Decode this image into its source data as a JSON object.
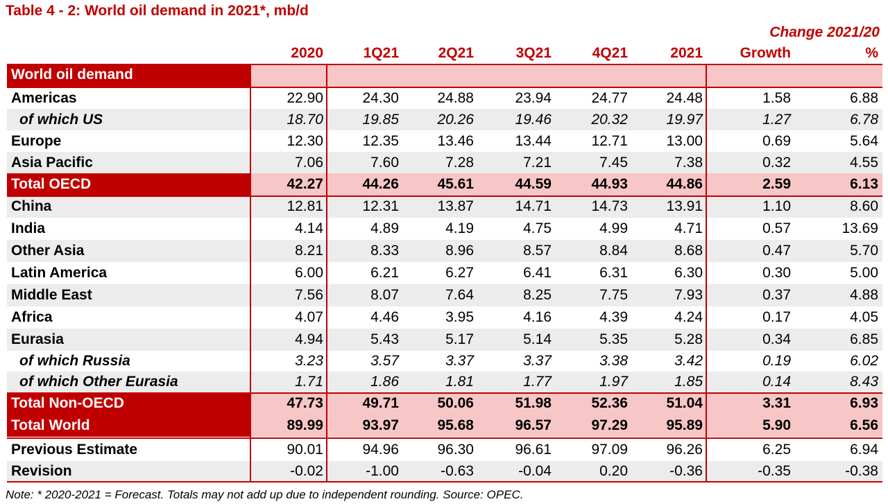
{
  "title": "Table 4 - 2: World oil demand in 2021*, mb/d",
  "change_header": "Change 2021/20",
  "columns": [
    "2020",
    "1Q21",
    "2Q21",
    "3Q21",
    "4Q21",
    "2021",
    "Growth",
    "%"
  ],
  "section_label": "World oil demand",
  "rows": [
    {
      "label": "Americas",
      "values": [
        "22.90",
        "24.30",
        "24.88",
        "23.94",
        "24.77",
        "24.48",
        "1.58",
        "6.88"
      ]
    },
    {
      "label": "of which US",
      "values": [
        "18.70",
        "19.85",
        "20.26",
        "19.46",
        "20.32",
        "19.97",
        "1.27",
        "6.78"
      ]
    },
    {
      "label": "Europe",
      "values": [
        "12.30",
        "12.35",
        "13.46",
        "13.44",
        "12.71",
        "13.00",
        "0.69",
        "5.64"
      ]
    },
    {
      "label": "Asia Pacific",
      "values": [
        "7.06",
        "7.60",
        "7.28",
        "7.21",
        "7.45",
        "7.38",
        "0.32",
        "4.55"
      ]
    },
    {
      "label": "Total OECD",
      "values": [
        "42.27",
        "44.26",
        "45.61",
        "44.59",
        "44.93",
        "44.86",
        "2.59",
        "6.13"
      ]
    },
    {
      "label": "China",
      "values": [
        "12.81",
        "12.31",
        "13.87",
        "14.71",
        "14.73",
        "13.91",
        "1.10",
        "8.60"
      ]
    },
    {
      "label": "India",
      "values": [
        "4.14",
        "4.89",
        "4.19",
        "4.75",
        "4.99",
        "4.71",
        "0.57",
        "13.69"
      ]
    },
    {
      "label": "Other Asia",
      "values": [
        "8.21",
        "8.33",
        "8.96",
        "8.57",
        "8.84",
        "8.68",
        "0.47",
        "5.70"
      ]
    },
    {
      "label": "Latin America",
      "values": [
        "6.00",
        "6.21",
        "6.27",
        "6.41",
        "6.31",
        "6.30",
        "0.30",
        "5.00"
      ]
    },
    {
      "label": "Middle East",
      "values": [
        "7.56",
        "8.07",
        "7.64",
        "8.25",
        "7.75",
        "7.93",
        "0.37",
        "4.88"
      ]
    },
    {
      "label": "Africa",
      "values": [
        "4.07",
        "4.46",
        "3.95",
        "4.16",
        "4.39",
        "4.24",
        "0.17",
        "4.05"
      ]
    },
    {
      "label": "Eurasia",
      "values": [
        "4.94",
        "5.43",
        "5.17",
        "5.14",
        "5.35",
        "5.28",
        "0.34",
        "6.85"
      ]
    },
    {
      "label": "of which Russia",
      "values": [
        "3.23",
        "3.57",
        "3.37",
        "3.37",
        "3.38",
        "3.42",
        "0.19",
        "6.02"
      ]
    },
    {
      "label": "of which Other Eurasia",
      "values": [
        "1.71",
        "1.86",
        "1.81",
        "1.77",
        "1.97",
        "1.85",
        "0.14",
        "8.43"
      ]
    },
    {
      "label": "Total Non-OECD",
      "values": [
        "47.73",
        "49.71",
        "50.06",
        "51.98",
        "52.36",
        "51.04",
        "3.31",
        "6.93"
      ]
    },
    {
      "label": "Total World",
      "values": [
        "89.99",
        "93.97",
        "95.68",
        "96.57",
        "97.29",
        "95.89",
        "5.90",
        "6.56"
      ]
    },
    {
      "label": "Previous Estimate",
      "values": [
        "90.01",
        "94.96",
        "96.30",
        "96.61",
        "97.09",
        "96.26",
        "6.25",
        "6.94"
      ]
    },
    {
      "label": "Revision",
      "values": [
        "-0.02",
        "-1.00",
        "-0.63",
        "-0.04",
        "0.20",
        "-0.36",
        "-0.35",
        "-0.38"
      ]
    }
  ],
  "note": "Note: * 2020-2021 = Forecast. Totals may not add up due to independent rounding. Source: OPEC.",
  "colors": {
    "accent": "#c00000",
    "band_pink": "#f7c6c6",
    "band_grey": "#ececec"
  }
}
